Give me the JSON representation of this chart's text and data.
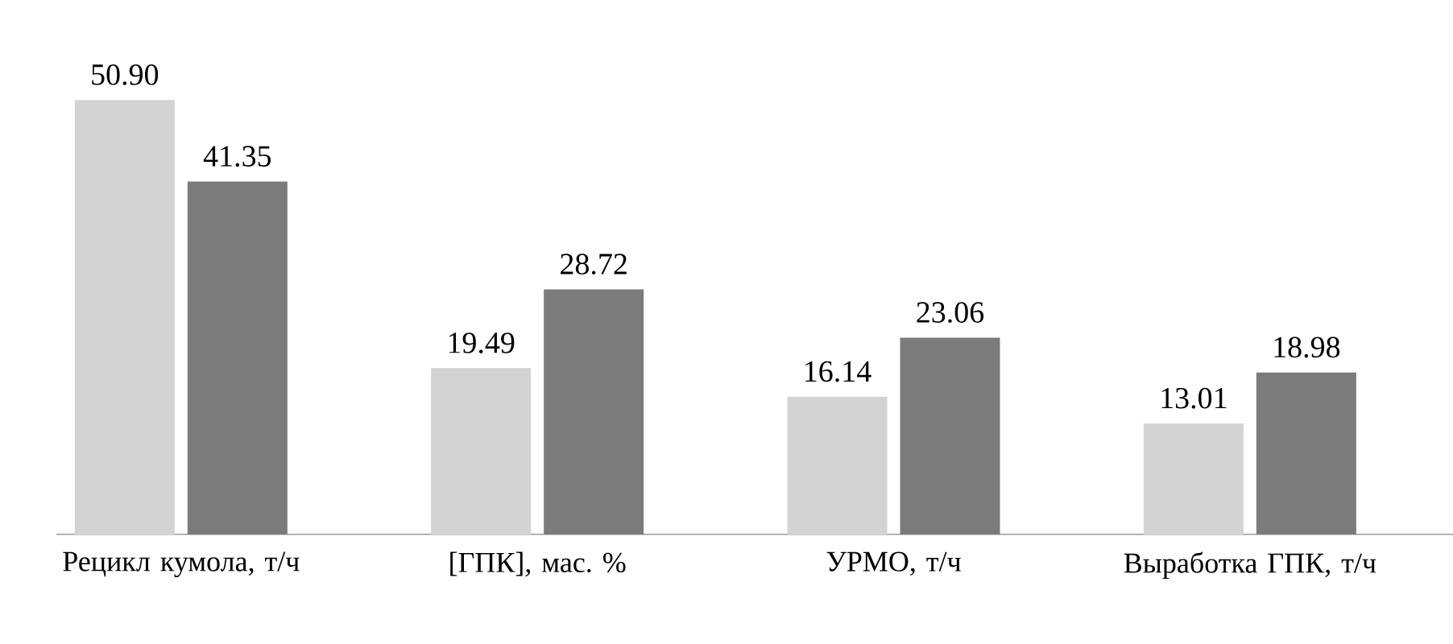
{
  "chart_data": {
    "type": "bar",
    "categories": [
      "Рецикл кумола, т/ч",
      "[ГПК], мас. %",
      "УРМО, т/ч",
      "Выработка ГПК, т/ч"
    ],
    "series": [
      {
        "color": "#d3d3d3",
        "values": [
          50.9,
          19.49,
          16.14,
          13.01
        ],
        "value_labels": [
          "50.90",
          "19.49",
          "16.14",
          "13.01"
        ]
      },
      {
        "color": "#7b7b7c",
        "values": [
          41.35,
          28.72,
          23.06,
          18.98
        ],
        "value_labels": [
          "41.35",
          "28.72",
          "23.06",
          "18.98"
        ]
      }
    ]
  }
}
